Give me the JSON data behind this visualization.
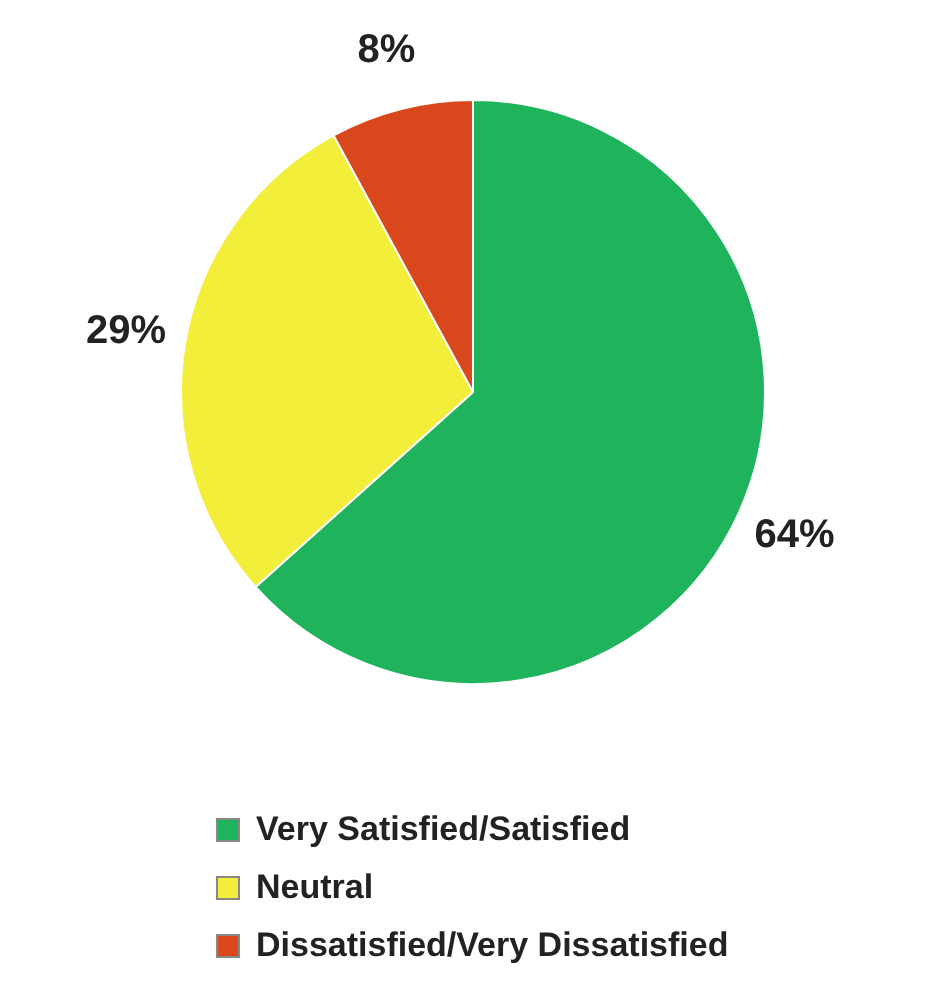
{
  "chart_data": {
    "type": "pie",
    "categories": [
      "Very Satisfied/Satisfied",
      "Neutral",
      "Dissatisfied/Very Dissatisfied"
    ],
    "values": [
      64,
      29,
      8
    ],
    "colors": [
      "#1fb35b",
      "#f2ee3a",
      "#d9481c"
    ],
    "value_labels": [
      "64%",
      "29%",
      "8%"
    ],
    "legend": "bottom"
  }
}
